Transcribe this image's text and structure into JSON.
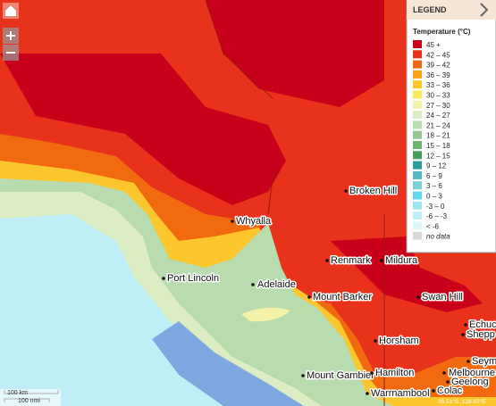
{
  "legend": {
    "header": "LEGEND",
    "title": "Temperature (°C)",
    "items": [
      {
        "label": "45 +",
        "color": "#c8001a"
      },
      {
        "label": "42 – 45",
        "color": "#e8321c"
      },
      {
        "label": "39 – 42",
        "color": "#f26a10"
      },
      {
        "label": "36 – 39",
        "color": "#f9a31a"
      },
      {
        "label": "33 – 36",
        "color": "#fcc62c"
      },
      {
        "label": "30 – 33",
        "color": "#fbe85c"
      },
      {
        "label": "27 – 30",
        "color": "#f3f2a8"
      },
      {
        "label": "24 – 27",
        "color": "#dcedc4"
      },
      {
        "label": "21 – 24",
        "color": "#b8dcae"
      },
      {
        "label": "18 – 21",
        "color": "#94c88e"
      },
      {
        "label": "15 – 18",
        "color": "#6cb46e"
      },
      {
        "label": "12 – 15",
        "color": "#44a05a"
      },
      {
        "label": "9 – 12",
        "color": "#2a9c9c"
      },
      {
        "label": "6 – 9",
        "color": "#54b8c0"
      },
      {
        "label": "3 – 6",
        "color": "#7ccfd8"
      },
      {
        "label": "0 – 3",
        "color": "#5fd8e8"
      },
      {
        "label": "-3 – 0",
        "color": "#9ce4f0"
      },
      {
        "label": "-6 – -3",
        "color": "#bfeef6"
      },
      {
        "label": "< -6",
        "color": "#dcf6fb"
      },
      {
        "label": "no data",
        "color": "#d8d8d8"
      }
    ]
  },
  "places": [
    {
      "name": "Broken Hill"
    },
    {
      "name": "Whyalla"
    },
    {
      "name": "Port Lincoln"
    },
    {
      "name": "Adelaide"
    },
    {
      "name": "Mount Barker"
    },
    {
      "name": "Renmark"
    },
    {
      "name": "Mildura"
    },
    {
      "name": "Swan Hill"
    },
    {
      "name": "Horsham"
    },
    {
      "name": "Mount Gambier"
    },
    {
      "name": "Hamilton"
    },
    {
      "name": "Warrnambool"
    },
    {
      "name": "Colac"
    },
    {
      "name": "Geelong"
    },
    {
      "name": "Melbourne"
    },
    {
      "name": "Echuca"
    },
    {
      "name": "Shepp"
    },
    {
      "name": "Seym"
    }
  ],
  "scale": {
    "km": "100 km",
    "nmi": "100 nmi"
  },
  "coordinates": "26.51°S, 128.62°E"
}
